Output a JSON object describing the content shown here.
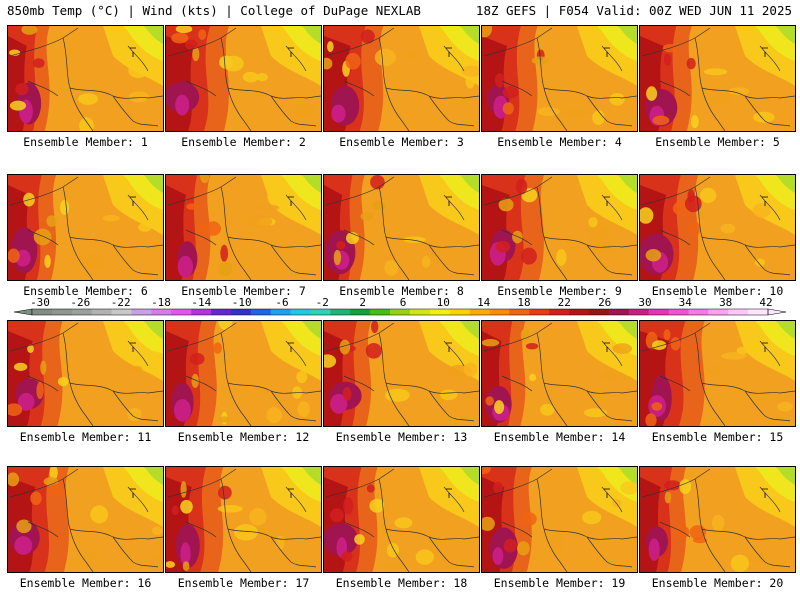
{
  "header": {
    "left": "850mb Temp (°C) | Wind (kts) | College of DuPage NEXLAB",
    "right": "18Z GEFS | F054 Valid: 00Z WED JUN 11 2025"
  },
  "panels": [
    {
      "member": 1,
      "label": "Ensemble Member: 1"
    },
    {
      "member": 2,
      "label": "Ensemble Member: 2"
    },
    {
      "member": 3,
      "label": "Ensemble Member: 3"
    },
    {
      "member": 4,
      "label": "Ensemble Member: 4"
    },
    {
      "member": 5,
      "label": "Ensemble Member: 5"
    },
    {
      "member": 6,
      "label": "Ensemble Member: 6"
    },
    {
      "member": 7,
      "label": "Ensemble Member: 7"
    },
    {
      "member": 8,
      "label": "Ensemble Member: 8"
    },
    {
      "member": 9,
      "label": "Ensemble Member: 9"
    },
    {
      "member": 10,
      "label": "Ensemble Member: 10"
    },
    {
      "member": 11,
      "label": "Ensemble Member: 11"
    },
    {
      "member": 12,
      "label": "Ensemble Member: 12"
    },
    {
      "member": 13,
      "label": "Ensemble Member: 13"
    },
    {
      "member": 14,
      "label": "Ensemble Member: 14"
    },
    {
      "member": 15,
      "label": "Ensemble Member: 15"
    },
    {
      "member": 16,
      "label": "Ensemble Member: 16"
    },
    {
      "member": 17,
      "label": "Ensemble Member: 17"
    },
    {
      "member": 18,
      "label": "Ensemble Member: 18"
    },
    {
      "member": 19,
      "label": "Ensemble Member: 19"
    },
    {
      "member": 20,
      "label": "Ensemble Member: 20"
    }
  ],
  "colorbar": {
    "labels": [
      "-30",
      "-26",
      "-22",
      "-18",
      "-14",
      "-10",
      "-6",
      "-2",
      "2",
      "6",
      "10",
      "14",
      "18",
      "22",
      "26",
      "30",
      "34",
      "38",
      "42"
    ],
    "colors": [
      "#7e8e84",
      "#8d968f",
      "#9ca09c",
      "#b2b2b2",
      "#c8c8c8",
      "#c8a0e6",
      "#d67be8",
      "#e454f0",
      "#b432e0",
      "#6428d2",
      "#3232c8",
      "#1e64e6",
      "#1ea0f0",
      "#20c8e6",
      "#30d2b4",
      "#1eb478",
      "#14a03c",
      "#46be14",
      "#96d214",
      "#d2e614",
      "#f0f014",
      "#ffd200",
      "#ffaa00",
      "#ff8c00",
      "#f06414",
      "#e63c14",
      "#d21e1e",
      "#b41414",
      "#961414",
      "#a01450",
      "#c81e82",
      "#e632b4",
      "#f050d2",
      "#f778e6",
      "#fca0f0",
      "#ffc8fa",
      "#ffe6fc"
    ]
  }
}
